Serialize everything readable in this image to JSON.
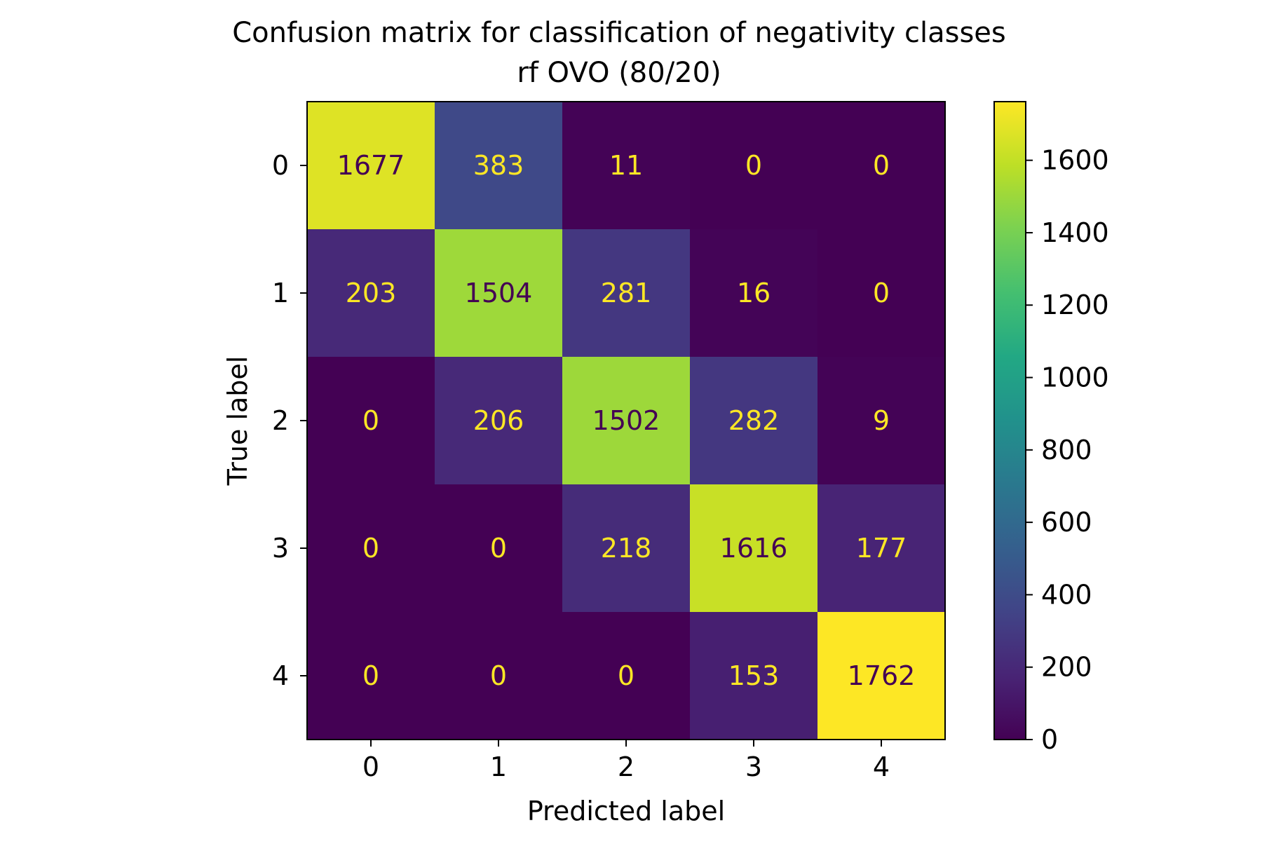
{
  "chart_data": {
    "type": "heatmap",
    "title": "Confusion matrix for classification of negativity classes",
    "subtitle": "rf OVO (80/20)",
    "xlabel": "Predicted label",
    "ylabel": "True label",
    "x_categories": [
      "0",
      "1",
      "2",
      "3",
      "4"
    ],
    "y_categories": [
      "0",
      "1",
      "2",
      "3",
      "4"
    ],
    "matrix": [
      [
        1677,
        383,
        11,
        0,
        0
      ],
      [
        203,
        1504,
        281,
        16,
        0
      ],
      [
        0,
        206,
        1502,
        282,
        9
      ],
      [
        0,
        0,
        218,
        1616,
        177
      ],
      [
        0,
        0,
        0,
        153,
        1762
      ]
    ],
    "colormap": "viridis",
    "color_range": [
      0,
      1762
    ],
    "colorbar_ticks": [
      0,
      200,
      400,
      600,
      800,
      1000,
      1200,
      1400,
      1600
    ],
    "colors": {
      "text_on_dark": "#fde725",
      "text_on_light": "#440154"
    }
  }
}
